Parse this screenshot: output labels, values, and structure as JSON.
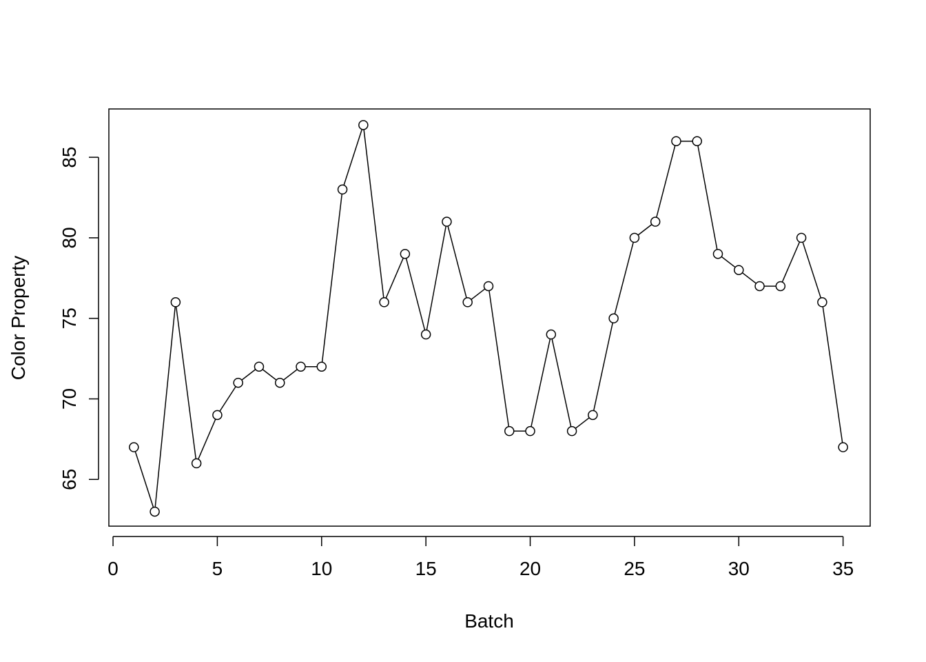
{
  "chart_data": {
    "type": "line",
    "title": "",
    "xlabel": "Batch",
    "ylabel": "Color Property",
    "xlim": [
      -0.2,
      36.3
    ],
    "ylim": [
      62.1,
      88.0
    ],
    "x_ticks": [
      0,
      5,
      10,
      15,
      20,
      25,
      30,
      35
    ],
    "y_ticks": [
      65,
      70,
      75,
      80,
      85
    ],
    "grid": false,
    "legend": "none",
    "markers": "open-circle",
    "line_color": "#000000",
    "x": [
      1,
      2,
      3,
      4,
      5,
      6,
      7,
      8,
      9,
      10,
      11,
      12,
      13,
      14,
      15,
      16,
      17,
      18,
      19,
      20,
      21,
      22,
      23,
      24,
      25,
      26,
      27,
      28,
      29,
      30,
      31,
      32,
      33,
      34,
      35
    ],
    "series": [
      {
        "values": [
          67,
          63,
          76,
          66,
          69,
          71,
          72,
          71,
          72,
          72,
          83,
          87,
          76,
          79,
          74,
          81,
          76,
          77,
          68,
          68,
          74,
          68,
          69,
          75,
          80,
          81,
          86,
          86,
          79,
          78,
          77,
          77,
          80,
          76,
          67
        ]
      }
    ]
  }
}
